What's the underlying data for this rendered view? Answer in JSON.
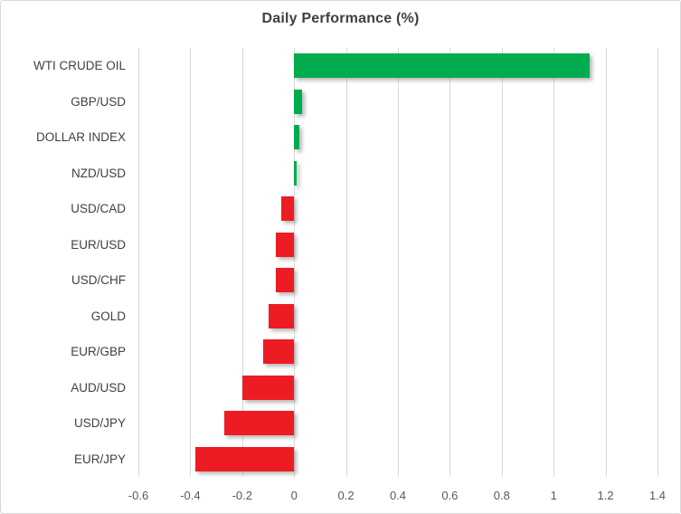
{
  "chart_data": {
    "type": "bar",
    "orientation": "horizontal",
    "title": "Daily Performance (%)",
    "categories": [
      "WTI CRUDE OIL",
      "GBP/USD",
      "DOLLAR INDEX",
      "NZD/USD",
      "USD/CAD",
      "EUR/USD",
      "USD/CHF",
      "GOLD",
      "EUR/GBP",
      "AUD/USD",
      "USD/JPY",
      "EUR/JPY"
    ],
    "values": [
      1.14,
      0.03,
      0.02,
      0.01,
      -0.05,
      -0.07,
      -0.07,
      -0.1,
      -0.12,
      -0.2,
      -0.27,
      -0.38
    ],
    "xlabel": "",
    "ylabel": "",
    "xlim": [
      -0.6,
      1.4
    ],
    "xticks": [
      -0.6,
      -0.4,
      -0.2,
      0,
      0.2,
      0.4,
      0.6,
      0.8,
      1,
      1.2,
      1.4
    ],
    "xtick_labels": [
      "-0.6",
      "-0.4",
      "-0.2",
      "0",
      "0.2",
      "0.4",
      "0.6",
      "0.8",
      "1",
      "1.2",
      "1.4"
    ],
    "grid": true,
    "legend": false,
    "colors": {
      "positive": "#00ac4e",
      "negative": "#ed1c24",
      "gridline": "#d9d9d9",
      "title_text": "#3f3f3f",
      "category_text": "#404040",
      "tick_text": "#595959"
    }
  }
}
